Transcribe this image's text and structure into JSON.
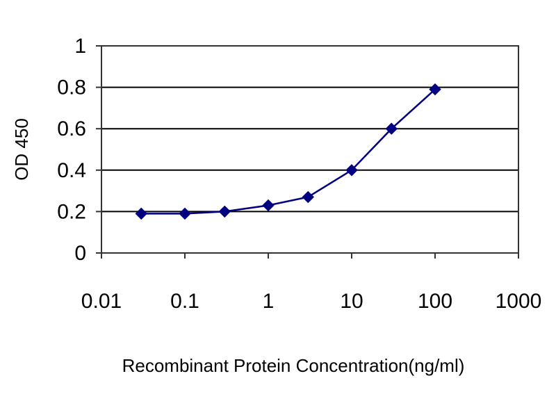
{
  "chart_data": {
    "type": "line",
    "title": "",
    "xlabel": "Recombinant Protein Concentration(ng/ml)",
    "ylabel": "OD 450",
    "x_scale": "log",
    "xlim": [
      0.01,
      1000
    ],
    "ylim": [
      0,
      1
    ],
    "x_ticks": [
      "0.01",
      "0.1",
      "1",
      "10",
      "100",
      "1000"
    ],
    "x_tick_values": [
      0.01,
      0.1,
      1,
      10,
      100,
      1000
    ],
    "y_ticks": [
      "0",
      "0.2",
      "0.4",
      "0.6",
      "0.8",
      "1"
    ],
    "y_tick_values": [
      0,
      0.2,
      0.4,
      0.6,
      0.8,
      1
    ],
    "grid": "horizontal",
    "legend": "none",
    "series": [
      {
        "color": "#000080",
        "marker": "diamond",
        "x": [
          0.03,
          0.1,
          0.3,
          1,
          3,
          10,
          30,
          100
        ],
        "y": [
          0.19,
          0.19,
          0.2,
          0.23,
          0.27,
          0.4,
          0.6,
          0.79
        ]
      }
    ]
  }
}
